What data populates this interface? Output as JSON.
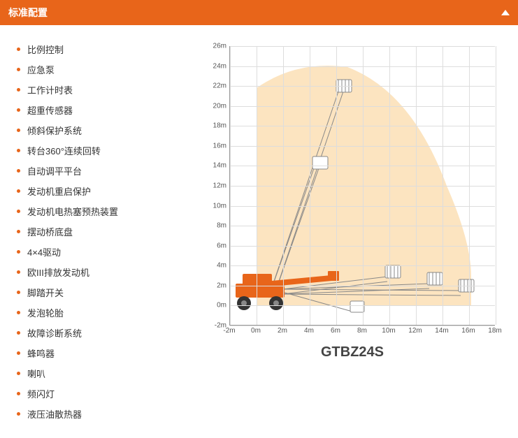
{
  "header": {
    "title": "标准配置"
  },
  "features": [
    "比例控制",
    "应急泵",
    "工作计时表",
    "超重传感器",
    "倾斜保护系统",
    "转台360°连续回转",
    "自动调平平台",
    "发动机重启保护",
    "发动机电热塞预热装置",
    "摆动桥底盘",
    "4×4驱动",
    "欧III排放发动机",
    "脚踏开关",
    "发泡轮胎",
    "故障诊断系统",
    "蜂鸣器",
    "喇叭",
    "频闪灯",
    "液压油散热器"
  ],
  "chart": {
    "model": "GTBZ24S",
    "y_ticks": [
      "26m",
      "24m",
      "22m",
      "20m",
      "18m",
      "16m",
      "14m",
      "12m",
      "10m",
      "8m",
      "6m",
      "4m",
      "2m",
      "0m",
      "-2m"
    ],
    "y_range": [
      -2,
      26
    ],
    "x_ticks": [
      "-2m",
      "0m",
      "2m",
      "4m",
      "6m",
      "8m",
      "10m",
      "12m",
      "14m",
      "16m",
      "18m"
    ],
    "x_range": [
      -2,
      18
    ],
    "envelope_color": "#fce4c0",
    "machine_color": "#e8651a",
    "grid_color": "#dddddd",
    "axis_color": "#999999",
    "label_fontsize": 10,
    "model_fontsize": 20
  }
}
